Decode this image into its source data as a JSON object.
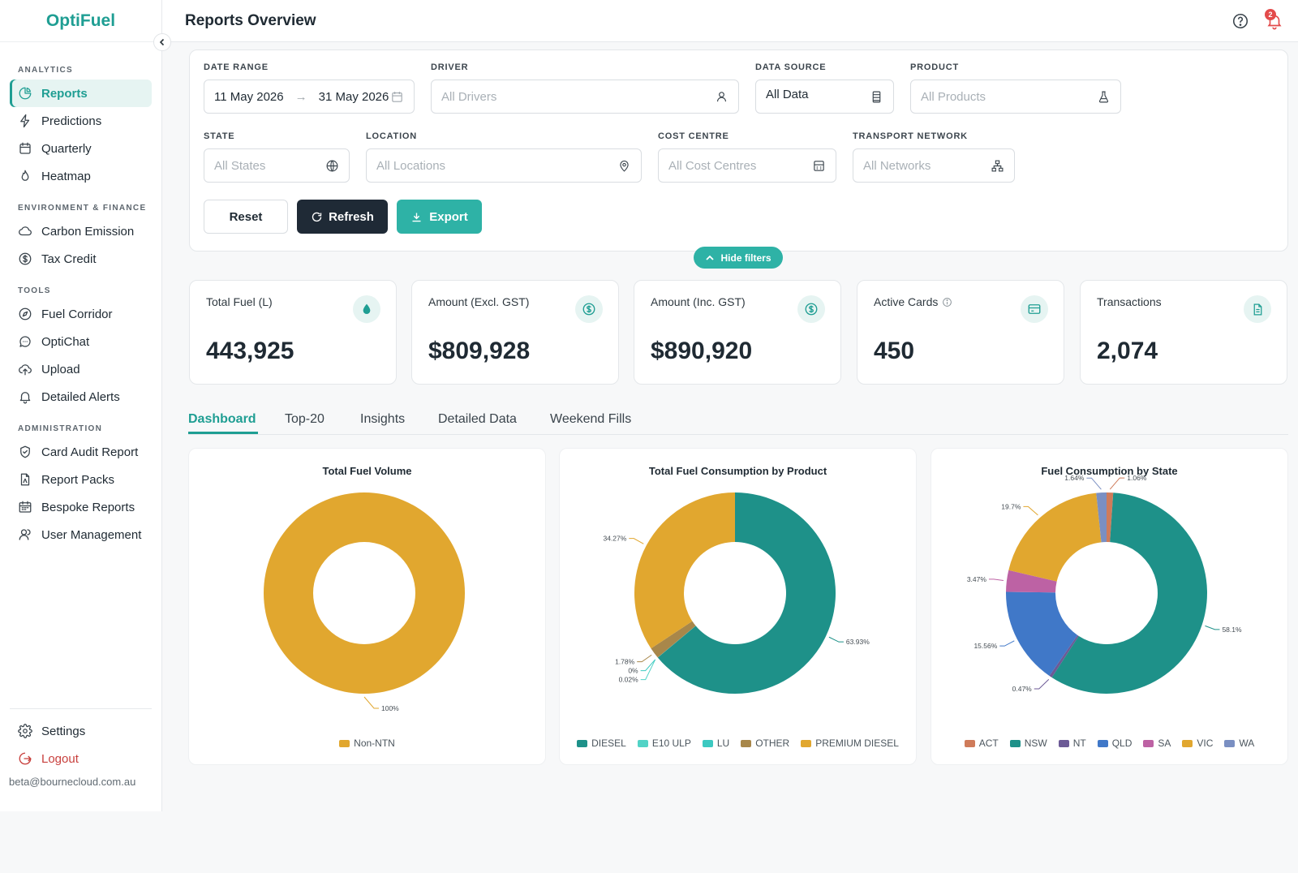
{
  "brand": "OptiFuel",
  "header": {
    "title": "Reports Overview",
    "notification_count": "2"
  },
  "sidebar": {
    "sections": [
      {
        "title": "ANALYTICS",
        "items": [
          {
            "label": "Reports",
            "icon": "pie-chart-icon",
            "active": true
          },
          {
            "label": "Predictions",
            "icon": "lightning-icon"
          },
          {
            "label": "Quarterly",
            "icon": "calendar-icon"
          },
          {
            "label": "Heatmap",
            "icon": "flame-icon"
          }
        ]
      },
      {
        "title": "ENVIRONMENT & FINANCE",
        "items": [
          {
            "label": "Carbon Emission",
            "icon": "cloud-icon"
          },
          {
            "label": "Tax Credit",
            "icon": "dollar-circle-icon"
          }
        ]
      },
      {
        "title": "TOOLS",
        "items": [
          {
            "label": "Fuel Corridor",
            "icon": "compass-icon"
          },
          {
            "label": "OptiChat",
            "icon": "chat-icon"
          },
          {
            "label": "Upload",
            "icon": "cloud-upload-icon"
          },
          {
            "label": "Detailed Alerts",
            "icon": "bell-icon"
          }
        ]
      },
      {
        "title": "ADMINISTRATION",
        "items": [
          {
            "label": "Card Audit Report",
            "icon": "shield-check-icon"
          },
          {
            "label": "Report Packs",
            "icon": "file-icon"
          },
          {
            "label": "Bespoke Reports",
            "icon": "calendar-grid-icon"
          },
          {
            "label": "User Management",
            "icon": "users-icon"
          }
        ]
      }
    ],
    "settings": "Settings",
    "logout": "Logout",
    "email": "beta@bournecloud.com.au"
  },
  "filters": {
    "date_range": {
      "label": "DATE RANGE",
      "start": "11 May 2026",
      "arrow": "→",
      "end": "31 May 2026"
    },
    "driver": {
      "label": "DRIVER",
      "placeholder": "All Drivers"
    },
    "data_source": {
      "label": "DATA SOURCE",
      "value": "All Data"
    },
    "product": {
      "label": "PRODUCT",
      "placeholder": "All Products"
    },
    "state": {
      "label": "STATE",
      "placeholder": "All States"
    },
    "location": {
      "label": "LOCATION",
      "placeholder": "All Locations"
    },
    "cost_centre": {
      "label": "COST CENTRE",
      "placeholder": "All Cost Centres"
    },
    "transport_network": {
      "label": "TRANSPORT NETWORK",
      "placeholder": "All Networks"
    },
    "reset": "Reset",
    "refresh": "Refresh",
    "export": "Export",
    "hide_filters": "Hide filters"
  },
  "kpis": [
    {
      "label": "Total Fuel (L)",
      "value": "443,925",
      "icon": "droplet-icon"
    },
    {
      "label": "Amount (Excl. GST)",
      "value": "$809,928",
      "icon": "dollar-icon"
    },
    {
      "label": "Amount (Inc. GST)",
      "value": "$890,920",
      "icon": "dollar-icon"
    },
    {
      "label": "Active Cards",
      "value": "450",
      "icon": "card-icon"
    },
    {
      "label": "Transactions",
      "value": "2,074",
      "icon": "document-icon"
    }
  ],
  "tabs": [
    "Dashboard",
    "Top-20",
    "Insights",
    "Detailed Data",
    "Weekend Fills"
  ],
  "colors": {
    "accent": "#1f9e93",
    "dark_button": "#1f2a36",
    "export_button": "#2eb2a6"
  },
  "chart_data": [
    {
      "type": "pie",
      "title": "Total Fuel Volume",
      "categories": [
        "Non-NTN"
      ],
      "values": [
        100
      ],
      "labels": [
        "100%"
      ],
      "colors": [
        "#e1a72f"
      ]
    },
    {
      "type": "pie",
      "title": "Total Fuel Consumption by Product",
      "categories": [
        "DIESEL",
        "E10 ULP",
        "LU",
        "OTHER",
        "PREMIUM DIESEL"
      ],
      "values": [
        63.93,
        0.02,
        0,
        1.78,
        34.27
      ],
      "labels": [
        "63.93%",
        "0.02%",
        "0%",
        "1.78%",
        "34.27%"
      ],
      "colors": [
        "#1e9189",
        "#52d3c6",
        "#3cc9c1",
        "#a8874a",
        "#e1a72f"
      ]
    },
    {
      "type": "pie",
      "title": "Fuel Consumption by State",
      "categories": [
        "ACT",
        "NSW",
        "NT",
        "QLD",
        "SA",
        "VIC",
        "WA"
      ],
      "values": [
        1.06,
        58.1,
        0.47,
        15.56,
        3.47,
        19.7,
        1.64
      ],
      "labels": [
        "1.06%",
        "58.1%",
        "0.47%",
        "15.56%",
        "3.47%",
        "19.7%",
        "1.64%"
      ],
      "colors": [
        "#cf7b5a",
        "#1e9189",
        "#6c5a96",
        "#4078c8",
        "#bd62a4",
        "#e1a72f",
        "#7a8fc2"
      ]
    }
  ]
}
